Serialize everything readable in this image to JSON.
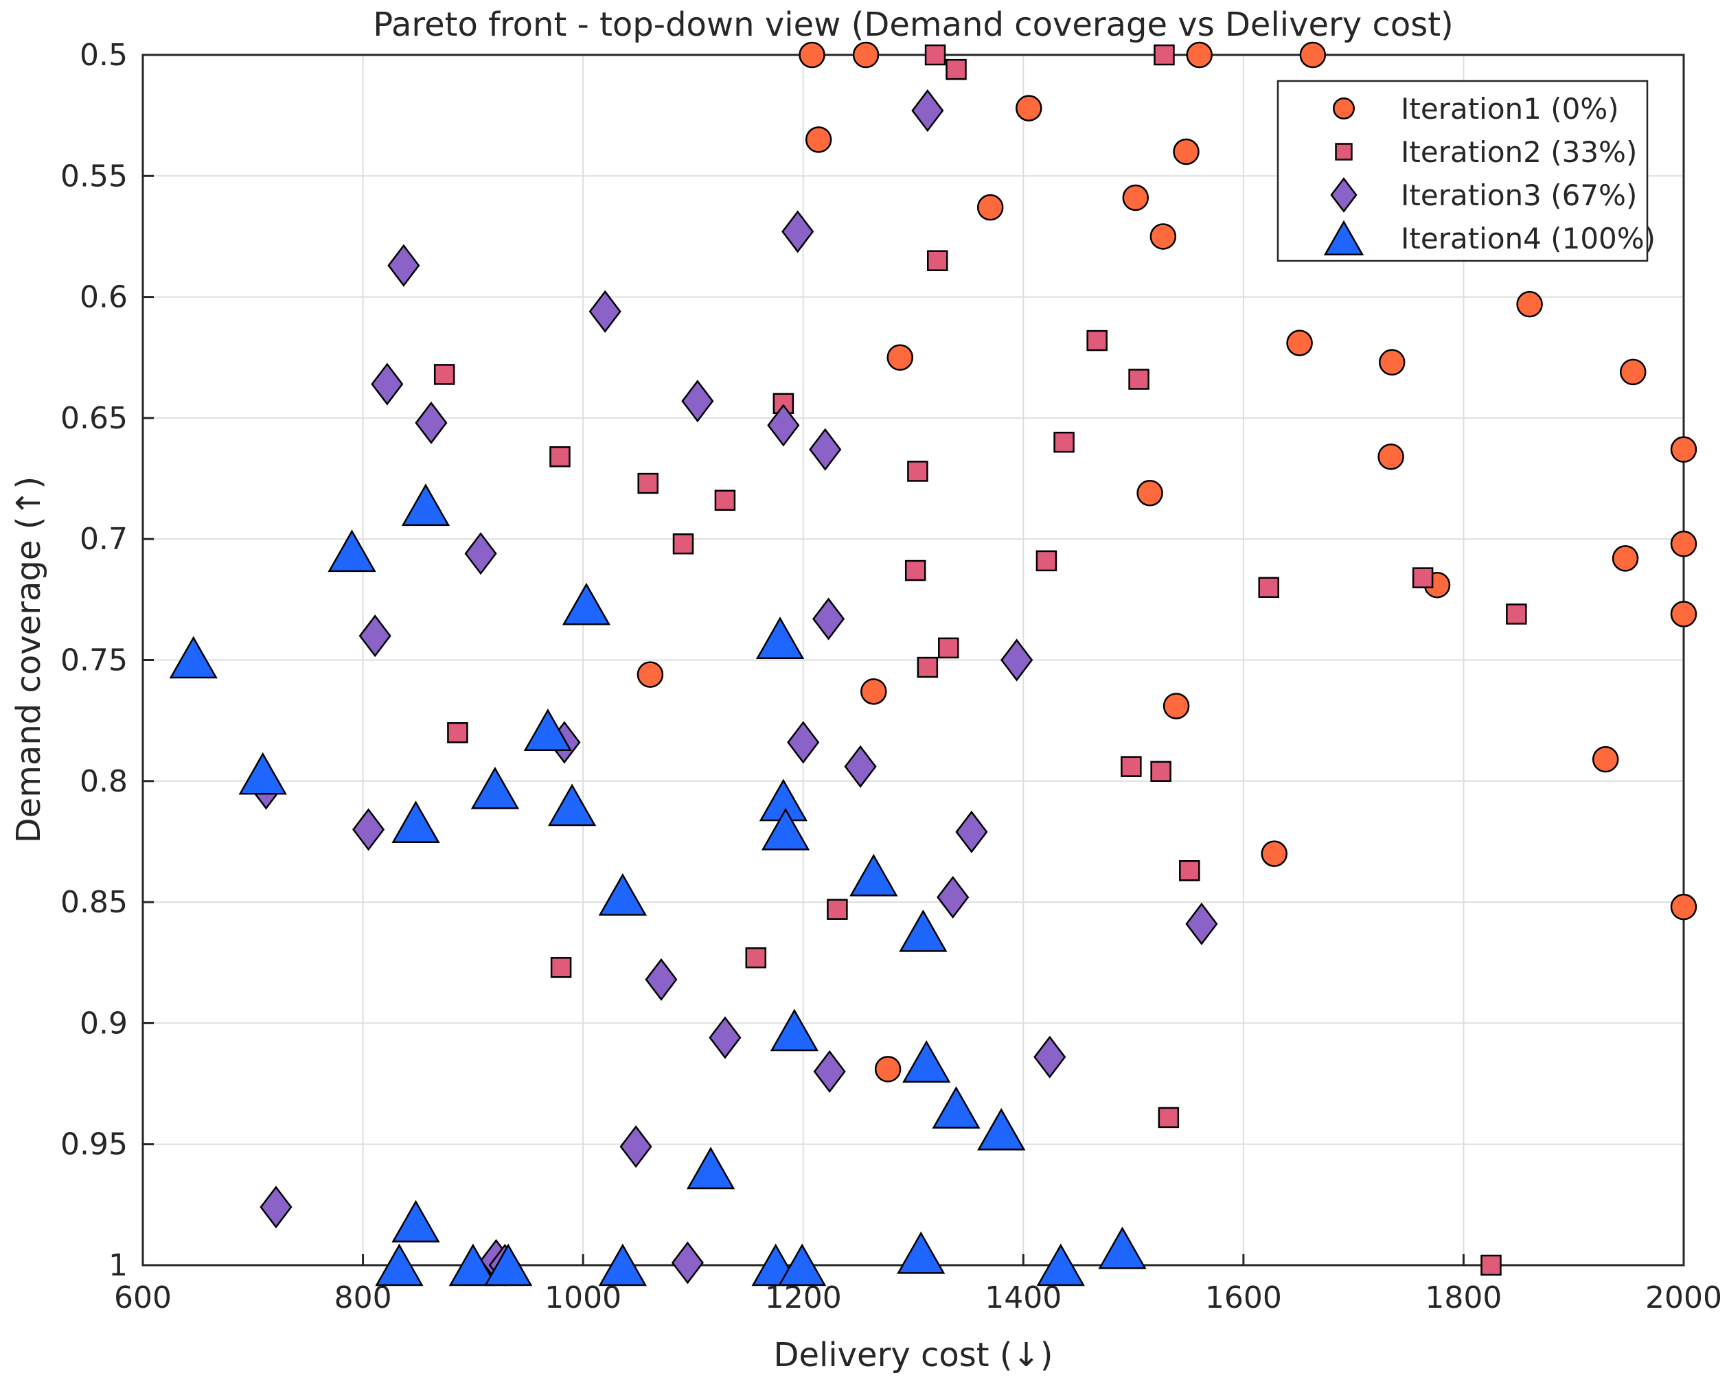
{
  "chart_data": {
    "type": "scatter",
    "title": "Pareto front - top-down view (Demand coverage vs Delivery cost)",
    "xlabel": "Delivery cost (↓)",
    "ylabel": "Demand coverage (↑)",
    "xlim": [
      600,
      2000
    ],
    "ylim": [
      0.5,
      1.0
    ],
    "y_reversed": true,
    "grid": true,
    "legend_position": "top-right",
    "x_ticks": [
      "600",
      "800",
      "1000",
      "1200",
      "1400",
      "1600",
      "1800",
      "2000"
    ],
    "y_ticks": [
      "0.5",
      "0.55",
      "0.6",
      "0.65",
      "0.7",
      "0.75",
      "0.8",
      "0.85",
      "0.9",
      "0.95",
      "1"
    ],
    "series": [
      {
        "name": "Iteration1 (0%)",
        "marker": "circle",
        "color": "#ff6a3d",
        "points": [
          [
            1208,
            0.5
          ],
          [
            1257,
            0.5
          ],
          [
            1560,
            0.5
          ],
          [
            1663,
            0.5
          ],
          [
            1214,
            0.535
          ],
          [
            1405,
            0.522
          ],
          [
            1548,
            0.54
          ],
          [
            1370,
            0.563
          ],
          [
            1502,
            0.559
          ],
          [
            1527,
            0.575
          ],
          [
            1860,
            0.603
          ],
          [
            1651,
            0.619
          ],
          [
            1288,
            0.625
          ],
          [
            1735,
            0.627
          ],
          [
            1954,
            0.631
          ],
          [
            1734,
            0.666
          ],
          [
            2000,
            0.663
          ],
          [
            1515,
            0.681
          ],
          [
            2000,
            0.702
          ],
          [
            1947,
            0.708
          ],
          [
            1776,
            0.719
          ],
          [
            2000,
            0.731
          ],
          [
            1061,
            0.756
          ],
          [
            1264,
            0.763
          ],
          [
            1539,
            0.769
          ],
          [
            1929,
            0.791
          ],
          [
            1628,
            0.83
          ],
          [
            2000,
            0.852
          ],
          [
            1277,
            0.919
          ]
        ]
      },
      {
        "name": "Iteration2 (33%)",
        "marker": "square",
        "color": "#e05a7a",
        "points": [
          [
            1320,
            0.5
          ],
          [
            1528,
            0.5
          ],
          [
            1339,
            0.506
          ],
          [
            1322,
            0.585
          ],
          [
            1467,
            0.618
          ],
          [
            874,
            0.632
          ],
          [
            1505,
            0.634
          ],
          [
            1182,
            0.644
          ],
          [
            1437,
            0.66
          ],
          [
            979,
            0.666
          ],
          [
            1304,
            0.672
          ],
          [
            1059,
            0.677
          ],
          [
            1129,
            0.684
          ],
          [
            1091,
            0.702
          ],
          [
            1421,
            0.709
          ],
          [
            1302,
            0.713
          ],
          [
            1763,
            0.716
          ],
          [
            1623,
            0.72
          ],
          [
            1848,
            0.731
          ],
          [
            1332,
            0.745
          ],
          [
            1313,
            0.753
          ],
          [
            886,
            0.78
          ],
          [
            1498,
            0.794
          ],
          [
            1525,
            0.796
          ],
          [
            1551,
            0.837
          ],
          [
            1231,
            0.853
          ],
          [
            1157,
            0.873
          ],
          [
            980,
            0.877
          ],
          [
            1532,
            0.939
          ],
          [
            1825,
            1.0
          ]
        ]
      },
      {
        "name": "Iteration3 (67%)",
        "marker": "diamond",
        "color": "#8a62c8",
        "points": [
          [
            1313,
            0.523
          ],
          [
            1195,
            0.573
          ],
          [
            837,
            0.587
          ],
          [
            1020,
            0.606
          ],
          [
            822,
            0.636
          ],
          [
            862,
            0.652
          ],
          [
            1104,
            0.643
          ],
          [
            1182,
            0.653
          ],
          [
            1220,
            0.663
          ],
          [
            907,
            0.706
          ],
          [
            811,
            0.74
          ],
          [
            1223,
            0.733
          ],
          [
            1394,
            0.75
          ],
          [
            983,
            0.784
          ],
          [
            1200,
            0.784
          ],
          [
            1252,
            0.794
          ],
          [
            712,
            0.803
          ],
          [
            805,
            0.82
          ],
          [
            1353,
            0.821
          ],
          [
            1336,
            0.848
          ],
          [
            1562,
            0.859
          ],
          [
            1071,
            0.882
          ],
          [
            1129,
            0.906
          ],
          [
            1424,
            0.914
          ],
          [
            1224,
            0.92
          ],
          [
            1048,
            0.951
          ],
          [
            721,
            0.976
          ],
          [
            921,
            0.998
          ],
          [
            929,
            1.0
          ],
          [
            1095,
            0.999
          ]
        ]
      },
      {
        "name": "Iteration4 (100%)",
        "marker": "triangle",
        "color": "#1f66ff",
        "points": [
          [
            857,
            0.686
          ],
          [
            790,
            0.705
          ],
          [
            1003,
            0.727
          ],
          [
            646,
            0.749
          ],
          [
            1179,
            0.741
          ],
          [
            968,
            0.779
          ],
          [
            709,
            0.797
          ],
          [
            920,
            0.803
          ],
          [
            990,
            0.81
          ],
          [
            1182,
            0.808
          ],
          [
            848,
            0.817
          ],
          [
            1184,
            0.82
          ],
          [
            1264,
            0.839
          ],
          [
            1036,
            0.847
          ],
          [
            1309,
            0.862
          ],
          [
            1192,
            0.903
          ],
          [
            1312,
            0.916
          ],
          [
            1339,
            0.935
          ],
          [
            1380,
            0.944
          ],
          [
            1116,
            0.96
          ],
          [
            848,
            0.982
          ],
          [
            1490,
            0.993
          ],
          [
            1307,
            0.995
          ],
          [
            833,
            1.0
          ],
          [
            900,
            1.0
          ],
          [
            932,
            1.0
          ],
          [
            1036,
            1.0
          ],
          [
            1175,
            1.0
          ],
          [
            1199,
            1.0
          ],
          [
            1434,
            1.0
          ]
        ]
      }
    ]
  }
}
